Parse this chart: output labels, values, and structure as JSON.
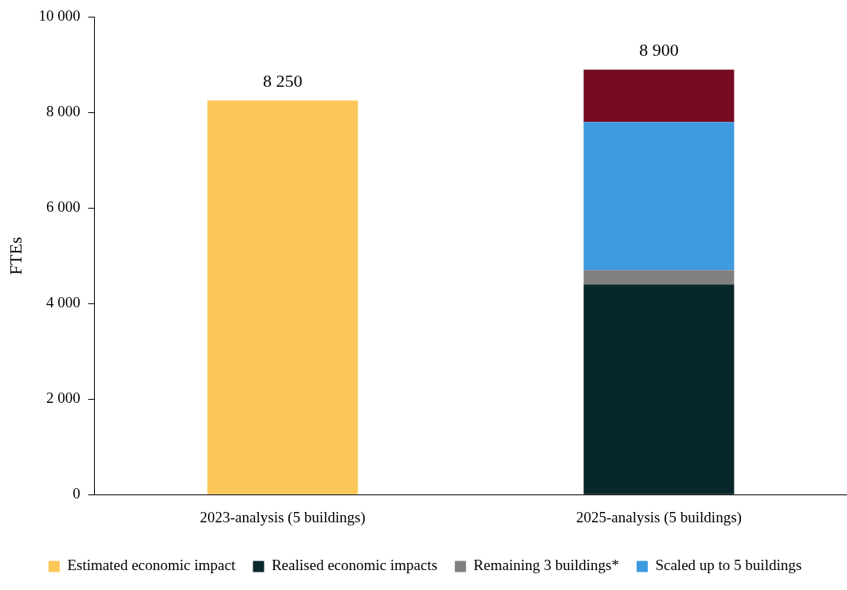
{
  "chart_data": {
    "type": "bar",
    "stacked": true,
    "ylabel": "FTEs",
    "categories": [
      "2023-analysis (5 buildings)",
      "2025-analysis (5 buildings)"
    ],
    "series": [
      {
        "name": "Estimated economic impact",
        "color": "#fdc858",
        "values": [
          8250,
          null
        ]
      },
      {
        "name": "Realised economic impacts",
        "color": "#08272a",
        "values": [
          null,
          4400
        ]
      },
      {
        "name": "Remaining 3 buildings*",
        "color": "#808080",
        "values": [
          null,
          300
        ]
      },
      {
        "name": "Scaled up to 5 buildings",
        "color": "#3f9adf",
        "values": [
          null,
          3100
        ]
      },
      {
        "color": "#760a20",
        "values": [
          null,
          1100
        ]
      }
    ],
    "totals": [
      "8 250",
      "8 900"
    ],
    "ylim": [
      0,
      10000
    ],
    "yticks": [
      0,
      {
        "value": 2000,
        "label": "2 000"
      },
      {
        "value": 4000,
        "label": "4 000"
      },
      {
        "value": 6000,
        "label": "6 000"
      },
      {
        "value": 8000,
        "label": "8 000"
      },
      {
        "value": 10000,
        "label": "10 000"
      }
    ],
    "grid": false,
    "legend": "bottom"
  }
}
